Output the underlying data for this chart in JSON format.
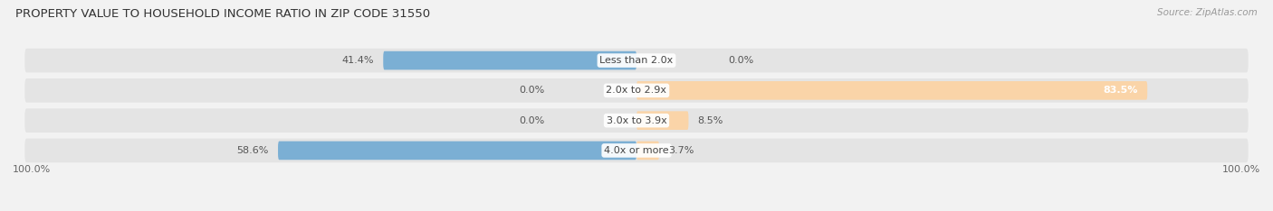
{
  "title": "PROPERTY VALUE TO HOUSEHOLD INCOME RATIO IN ZIP CODE 31550",
  "source": "Source: ZipAtlas.com",
  "categories": [
    "Less than 2.0x",
    "2.0x to 2.9x",
    "3.0x to 3.9x",
    "4.0x or more"
  ],
  "without_mortgage": [
    41.4,
    0.0,
    0.0,
    58.6
  ],
  "with_mortgage": [
    0.0,
    83.5,
    8.5,
    3.7
  ],
  "color_without": "#7bafd4",
  "color_with": "#f5a85a",
  "color_with_light": "#fad4a8",
  "bg_color": "#f2f2f2",
  "bar_bg_color": "#e4e4e4",
  "title_fontsize": 9.5,
  "label_fontsize": 8,
  "value_fontsize": 8,
  "legend_fontsize": 8.5,
  "x_left_label": "100.0%",
  "x_right_label": "100.0%"
}
